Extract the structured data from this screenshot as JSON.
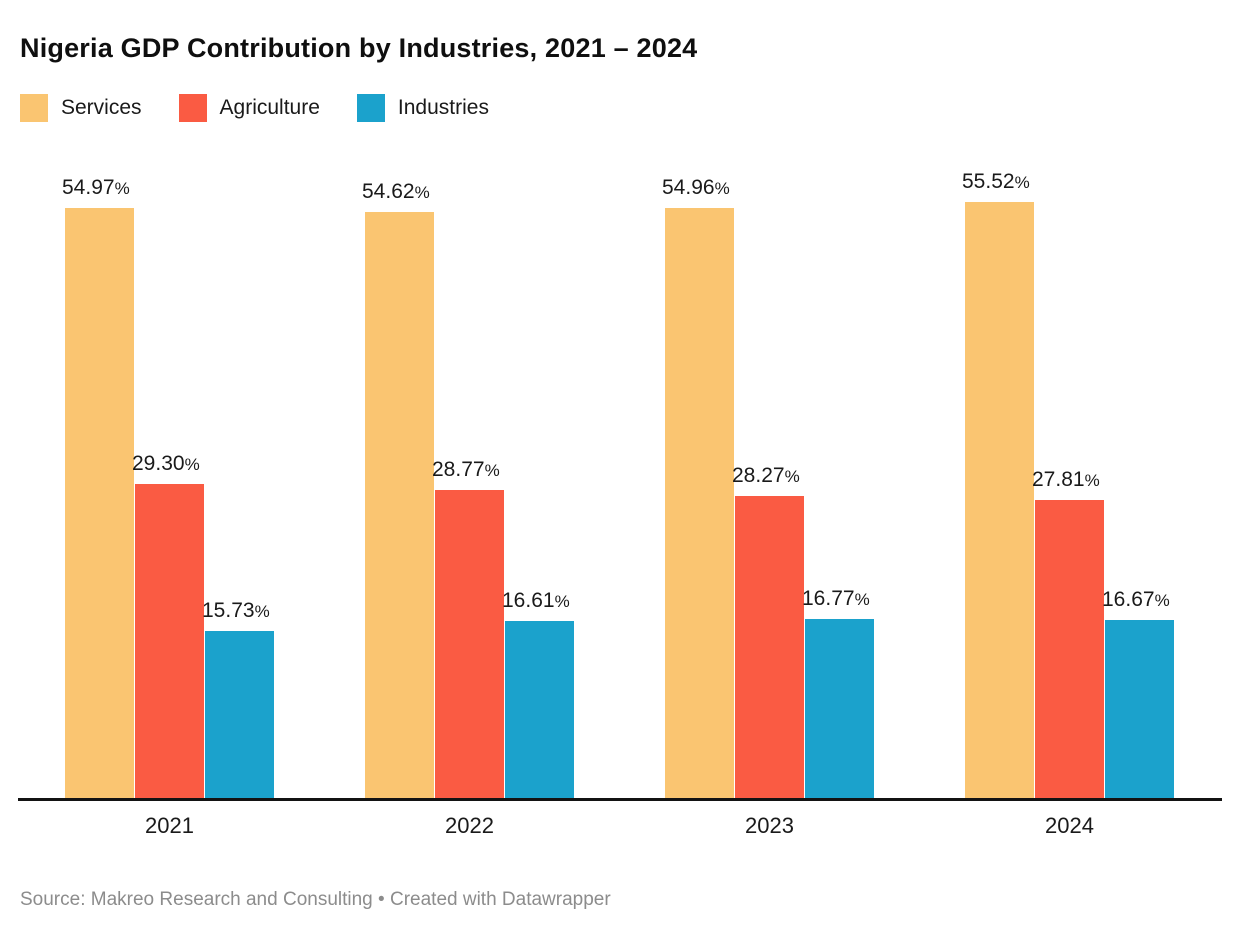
{
  "header": {
    "title": "Nigeria GDP Contribution by Industries, 2021 – 2024"
  },
  "footer": {
    "prefix": "Source: ",
    "source": "Makreo Research and Consulting",
    "separator": " • ",
    "credit": "Created with Datawrapper"
  },
  "colors": {
    "background": "#ffffff",
    "axis_line": "#131313",
    "label_text": "#1a1a1a",
    "footer_text": "#8c8c8c",
    "services": "#FAC571",
    "agriculture": "#FA5B43",
    "industries": "#1BA2CC"
  },
  "chart_data": {
    "type": "bar",
    "title": "Nigeria GDP Contribution by Industries, 2021 – 2024",
    "categories": [
      "2021",
      "2022",
      "2023",
      "2024"
    ],
    "series": [
      {
        "name": "Services",
        "color": "#FAC571",
        "values": [
          54.97,
          54.62,
          54.96,
          55.52
        ]
      },
      {
        "name": "Agriculture",
        "color": "#FA5B43",
        "values": [
          29.3,
          28.77,
          28.27,
          27.81
        ]
      },
      {
        "name": "Industries",
        "color": "#1BA2CC",
        "values": [
          15.73,
          16.61,
          16.77,
          16.67
        ]
      }
    ],
    "unit": "%",
    "value_labels": true,
    "value_label_format": "0.00%",
    "xlabel": "",
    "ylabel": "",
    "ylim": [
      0,
      60
    ],
    "grid": false,
    "y_axis_visible": false,
    "legend_position": "top-left"
  }
}
